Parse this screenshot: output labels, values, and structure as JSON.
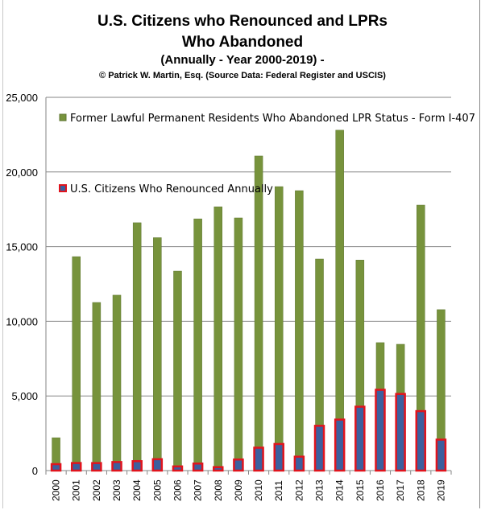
{
  "chart_data": {
    "type": "bar",
    "title": "U.S. Citizens who Renounced  and LPRs Who Abandoned",
    "subtitle": "(Annually - Year 2000-2019) -",
    "credit": "© Patrick W. Martin, Esq. (Source Data: Federal Register and USCIS)",
    "categories": [
      "2000",
      "2001",
      "2002",
      "2003",
      "2004",
      "2005",
      "2006",
      "2007",
      "2008",
      "2009",
      "2010",
      "2011",
      "2012",
      "2013",
      "2014",
      "2015",
      "2016",
      "2017",
      "2018",
      "2019"
    ],
    "series": [
      {
        "name": "Former Lawful Permanent Residents Who Abandoned LPR Status - Form I-407",
        "color": "#77933c",
        "values": [
          2200,
          14330,
          11260,
          11750,
          16600,
          15600,
          13360,
          16860,
          17670,
          16920,
          21070,
          19020,
          18750,
          14170,
          22800,
          14100,
          8570,
          8460,
          17780,
          10780
        ]
      },
      {
        "name": "U.S. Citizens Who Renounced Annually",
        "color": "#3c5f9e",
        "border": "#e0141e",
        "values": [
          431,
          506,
          503,
          571,
          630,
          762,
          278,
          470,
          231,
          742,
          1534,
          1781,
          932,
          2999,
          3415,
          4279,
          5411,
          5133,
          3983,
          2072
        ]
      }
    ],
    "ylim": [
      0,
      25000
    ],
    "yticks": [
      "0",
      "5,000",
      "10,000",
      "15,000",
      "20,000",
      "25,000"
    ],
    "grid": true,
    "legend": "inside-top-left"
  }
}
